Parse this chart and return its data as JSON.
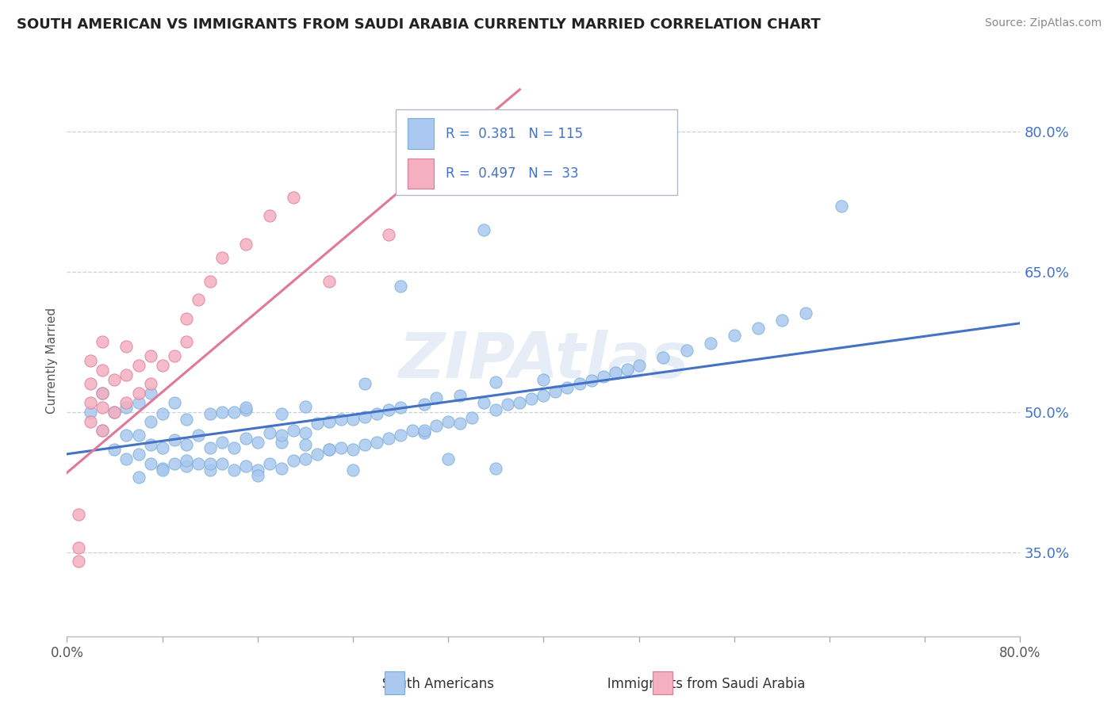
{
  "title": "SOUTH AMERICAN VS IMMIGRANTS FROM SAUDI ARABIA CURRENTLY MARRIED CORRELATION CHART",
  "source": "Source: ZipAtlas.com",
  "ylabel": "Currently Married",
  "yticks": [
    0.35,
    0.5,
    0.65,
    0.8
  ],
  "ytick_labels": [
    "35.0%",
    "50.0%",
    "65.0%",
    "80.0%"
  ],
  "xlim": [
    0.0,
    0.8
  ],
  "ylim": [
    0.26,
    0.85
  ],
  "watermark": "ZIPAtlas",
  "blue_color": "#aac8f0",
  "blue_edge": "#7aaed6",
  "blue_line_color": "#4472c4",
  "blue_R": 0.381,
  "blue_N": 115,
  "blue_trend_x": [
    0.0,
    0.8
  ],
  "blue_trend_y": [
    0.455,
    0.595
  ],
  "pink_color": "#f4afc0",
  "pink_edge": "#e07898",
  "pink_line_color": "#e07898",
  "pink_R": 0.497,
  "pink_N": 33,
  "pink_trend_x": [
    0.0,
    0.38
  ],
  "pink_trend_y": [
    0.435,
    0.845
  ],
  "label_color": "#4472c4",
  "title_color": "#222222",
  "source_color": "#888888",
  "grid_color": "#c8d0dc",
  "xticks": [
    0.0,
    0.08,
    0.16,
    0.24,
    0.32,
    0.4,
    0.48,
    0.56,
    0.64,
    0.72,
    0.8
  ],
  "blue_scatter_x": [
    0.02,
    0.03,
    0.03,
    0.04,
    0.04,
    0.05,
    0.05,
    0.05,
    0.06,
    0.06,
    0.06,
    0.07,
    0.07,
    0.07,
    0.07,
    0.08,
    0.08,
    0.08,
    0.09,
    0.09,
    0.09,
    0.1,
    0.1,
    0.1,
    0.11,
    0.11,
    0.12,
    0.12,
    0.12,
    0.13,
    0.13,
    0.13,
    0.14,
    0.14,
    0.14,
    0.15,
    0.15,
    0.15,
    0.16,
    0.16,
    0.17,
    0.17,
    0.18,
    0.18,
    0.18,
    0.19,
    0.19,
    0.2,
    0.2,
    0.2,
    0.21,
    0.21,
    0.22,
    0.22,
    0.23,
    0.23,
    0.24,
    0.24,
    0.25,
    0.25,
    0.26,
    0.26,
    0.27,
    0.27,
    0.28,
    0.28,
    0.29,
    0.3,
    0.3,
    0.31,
    0.31,
    0.32,
    0.33,
    0.33,
    0.34,
    0.35,
    0.36,
    0.36,
    0.37,
    0.38,
    0.39,
    0.4,
    0.41,
    0.42,
    0.43,
    0.44,
    0.45,
    0.46,
    0.47,
    0.48,
    0.5,
    0.52,
    0.54,
    0.56,
    0.58,
    0.6,
    0.62,
    0.65,
    0.36,
    0.3,
    0.25,
    0.2,
    0.15,
    0.35,
    0.4,
    0.28,
    0.22,
    0.18,
    0.12,
    0.1,
    0.08,
    0.06,
    0.16,
    0.24,
    0.32
  ],
  "blue_scatter_y": [
    0.5,
    0.48,
    0.52,
    0.46,
    0.5,
    0.45,
    0.475,
    0.505,
    0.455,
    0.475,
    0.51,
    0.445,
    0.465,
    0.49,
    0.52,
    0.44,
    0.462,
    0.498,
    0.445,
    0.47,
    0.51,
    0.442,
    0.465,
    0.492,
    0.445,
    0.475,
    0.438,
    0.462,
    0.498,
    0.445,
    0.468,
    0.5,
    0.438,
    0.462,
    0.5,
    0.442,
    0.472,
    0.502,
    0.438,
    0.468,
    0.445,
    0.478,
    0.44,
    0.468,
    0.498,
    0.448,
    0.48,
    0.45,
    0.478,
    0.506,
    0.455,
    0.488,
    0.46,
    0.49,
    0.462,
    0.492,
    0.46,
    0.492,
    0.465,
    0.495,
    0.468,
    0.498,
    0.472,
    0.502,
    0.475,
    0.505,
    0.48,
    0.478,
    0.508,
    0.485,
    0.515,
    0.49,
    0.488,
    0.518,
    0.494,
    0.51,
    0.502,
    0.532,
    0.508,
    0.51,
    0.514,
    0.518,
    0.522,
    0.526,
    0.53,
    0.534,
    0.538,
    0.542,
    0.546,
    0.55,
    0.558,
    0.566,
    0.574,
    0.582,
    0.59,
    0.598,
    0.606,
    0.72,
    0.44,
    0.48,
    0.53,
    0.465,
    0.505,
    0.695,
    0.535,
    0.635,
    0.46,
    0.475,
    0.445,
    0.448,
    0.438,
    0.43,
    0.432,
    0.438,
    0.45
  ],
  "pink_scatter_x": [
    0.01,
    0.01,
    0.01,
    0.02,
    0.02,
    0.02,
    0.02,
    0.03,
    0.03,
    0.03,
    0.03,
    0.03,
    0.04,
    0.04,
    0.05,
    0.05,
    0.05,
    0.06,
    0.06,
    0.07,
    0.07,
    0.08,
    0.09,
    0.1,
    0.1,
    0.11,
    0.12,
    0.13,
    0.15,
    0.17,
    0.19,
    0.22,
    0.27
  ],
  "pink_scatter_y": [
    0.355,
    0.39,
    0.34,
    0.49,
    0.51,
    0.53,
    0.555,
    0.48,
    0.505,
    0.52,
    0.545,
    0.575,
    0.5,
    0.535,
    0.51,
    0.54,
    0.57,
    0.52,
    0.55,
    0.53,
    0.56,
    0.55,
    0.56,
    0.575,
    0.6,
    0.62,
    0.64,
    0.665,
    0.68,
    0.71,
    0.73,
    0.64,
    0.69
  ]
}
